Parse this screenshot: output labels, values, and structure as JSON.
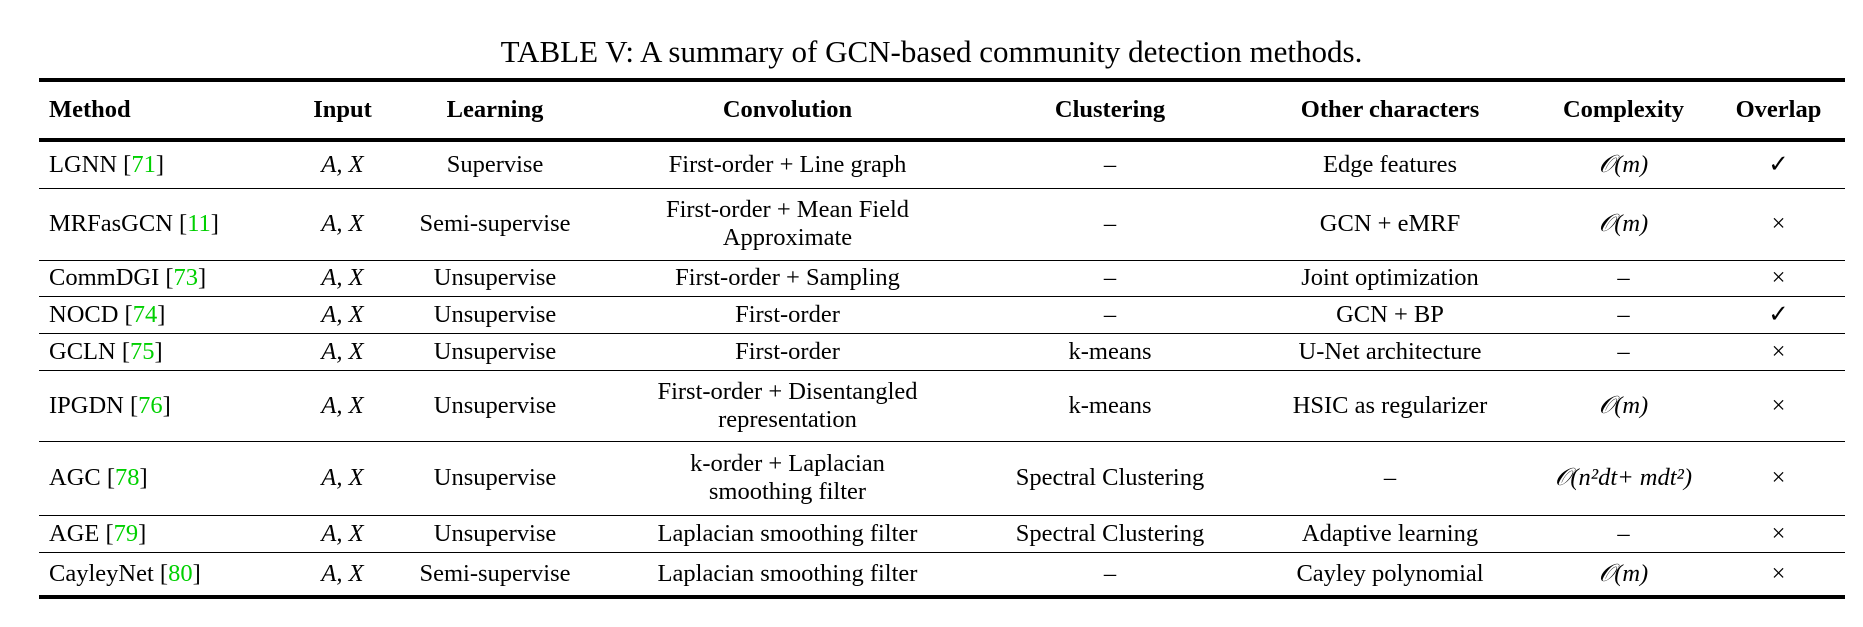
{
  "title": "TABLE V: A summary of GCN-based community detection methods.",
  "colors": {
    "citation": "#00d000"
  },
  "columns": [
    "Method",
    "Input",
    "Learning",
    "Convolution",
    "Clustering",
    "Other characters",
    "Complexity",
    "Overlap"
  ],
  "rows": [
    {
      "method": "LGNN",
      "ref": "71",
      "input": "A, X",
      "learning": "Supervise",
      "convolution": "First-order + Line graph",
      "clustering": "–",
      "other": "Edge features",
      "complexity": "𝒪(m)",
      "overlap": "✓"
    },
    {
      "method": "MRFasGCN",
      "ref": "11",
      "input": "A, X",
      "learning": "Semi-supervise",
      "convolution": "First-order + Mean Field Approximate",
      "clustering": "–",
      "other": "GCN + eMRF",
      "complexity": "𝒪(m)",
      "overlap": "×"
    },
    {
      "method": "CommDGI",
      "ref": "73",
      "input": "A, X",
      "learning": "Unsupervise",
      "convolution": "First-order + Sampling",
      "clustering": "–",
      "other": "Joint optimization",
      "complexity": "–",
      "overlap": "×"
    },
    {
      "method": "NOCD",
      "ref": "74",
      "input": "A, X",
      "learning": "Unsupervise",
      "convolution": "First-order",
      "clustering": "–",
      "other": "GCN + BP",
      "complexity": "–",
      "overlap": "✓"
    },
    {
      "method": "GCLN",
      "ref": "75",
      "input": "A, X",
      "learning": "Unsupervise",
      "convolution": "First-order",
      "clustering": "k-means",
      "other": "U-Net architecture",
      "complexity": "–",
      "overlap": "×"
    },
    {
      "method": "IPGDN",
      "ref": "76",
      "input": "A, X",
      "learning": "Unsupervise",
      "convolution": "First-order + Disentangled representation",
      "clustering": "k-means",
      "other": "HSIC as regularizer",
      "complexity": "𝒪(m)",
      "overlap": "×"
    },
    {
      "method": "AGC",
      "ref": "78",
      "input": "A, X",
      "learning": "Unsupervise",
      "convolution": "k-order + Laplacian smoothing filter",
      "clustering": "Spectral Clustering",
      "other": "–",
      "complexity": "𝒪(n²dt+ mdt²)",
      "overlap": "×"
    },
    {
      "method": "AGE",
      "ref": "79",
      "input": "A, X",
      "learning": "Unsupervise",
      "convolution": "Laplacian smoothing filter",
      "clustering": "Spectral Clustering",
      "other": "Adaptive learning",
      "complexity": "–",
      "overlap": "×"
    },
    {
      "method": "CayleyNet",
      "ref": "80",
      "input": "A, X",
      "learning": "Semi-supervise",
      "convolution": "Laplacian smoothing filter",
      "clustering": "–",
      "other": "Cayley polynomial",
      "complexity": "𝒪(m)",
      "overlap": "×"
    }
  ]
}
